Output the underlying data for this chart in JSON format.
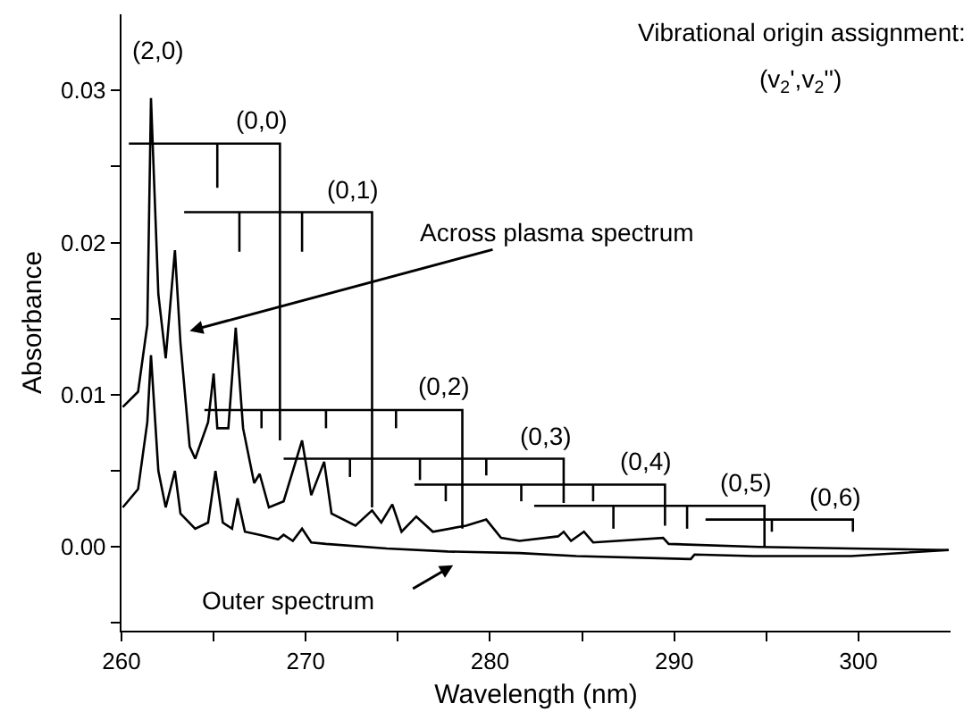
{
  "chart_data": {
    "type": "line",
    "xlabel": "Wavelength (nm)",
    "ylabel": "Absorbance",
    "xlim": [
      260,
      305
    ],
    "ylim": [
      -0.0055,
      0.035
    ],
    "xticks": [
      260,
      {
        "value": 265,
        "label": null
      },
      270,
      {
        "value": 275,
        "label": null
      },
      280,
      {
        "value": 285,
        "label": null
      },
      290,
      {
        "value": 295,
        "label": null
      },
      300
    ],
    "yticks": [
      {
        "value": -0.005,
        "label": null
      },
      {
        "value": 0,
        "label": "0.00"
      },
      {
        "value": 0.005,
        "label": null
      },
      {
        "value": 0.01,
        "label": "0.01"
      },
      {
        "value": 0.015,
        "label": null
      },
      {
        "value": 0.02,
        "label": "0.02"
      },
      {
        "value": 0.025,
        "label": null
      },
      {
        "value": 0.03,
        "label": "0.03"
      }
    ],
    "marker": "none",
    "line_style": "solid",
    "series": [
      {
        "color": "#000000",
        "x": [
          260.07,
          260.9,
          261.4,
          261.6,
          262.0,
          262.4,
          262.9,
          263.2,
          263.7,
          264.0,
          264.7,
          265.0,
          265.2,
          265.8,
          266.2,
          266.6,
          267.2,
          267.5,
          268.0,
          268.8,
          269.8,
          270.3,
          271.0,
          271.4,
          272.7,
          273.6,
          274.1,
          274.7,
          275.2,
          276.0,
          276.9,
          278.7,
          279.8,
          280.6,
          281.6,
          283.7,
          284.0,
          284.4,
          285.1,
          285.6,
          289.4,
          289.7,
          294.6,
          299.6,
          304.9
        ],
        "values": [
          0.0092,
          0.0102,
          0.0146,
          0.0295,
          0.0166,
          0.0124,
          0.0195,
          0.0134,
          0.0066,
          0.0058,
          0.0082,
          0.0114,
          0.0078,
          0.0078,
          0.0144,
          0.0078,
          0.0042,
          0.0048,
          0.0026,
          0.003,
          0.007,
          0.0034,
          0.0056,
          0.0022,
          0.0014,
          0.0024,
          0.0016,
          0.0028,
          0.001,
          0.002,
          0.001,
          0.0014,
          0.0018,
          0.0006,
          0.0004,
          0.0007,
          0.001,
          0.0004,
          0.001,
          0.0003,
          0.0006,
          0.0002,
          0.0,
          -0.0001,
          -0.0002
        ]
      },
      {
        "color": "#000000",
        "x": [
          260.07,
          260.9,
          261.4,
          261.6,
          262.0,
          262.4,
          262.9,
          263.2,
          264.0,
          264.7,
          265.1,
          265.5,
          266.0,
          266.3,
          266.7,
          267.5,
          268.5,
          268.8,
          269.3,
          269.8,
          270.3,
          271.1,
          274.4,
          277.7,
          281.6,
          284.7,
          290.9,
          291.1,
          294.3,
          299.6,
          304.9
        ],
        "values": [
          0.0026,
          0.0038,
          0.0082,
          0.0126,
          0.005,
          0.0026,
          0.005,
          0.0022,
          0.0012,
          0.0016,
          0.005,
          0.0016,
          0.0012,
          0.0032,
          0.001,
          0.0008,
          0.0005,
          0.0008,
          0.0004,
          0.0012,
          0.0003,
          0.0002,
          -0.0001,
          -0.0003,
          -0.0004,
          -0.0006,
          -0.0008,
          -0.0005,
          -0.0006,
          -0.0006,
          -0.0002
        ]
      },
      {
        "color": "#000000",
        "x": [
          268.6,
          268.6,
          260.4
        ],
        "values": [
          0.007,
          0.0265,
          0.0265
        ]
      },
      {
        "color": "#000000",
        "x": [
          273.6,
          273.6,
          263.4
        ],
        "values": [
          0.0026,
          0.022,
          0.022
        ]
      },
      {
        "color": "#000000",
        "x": [
          278.5,
          278.5,
          264.5
        ],
        "values": [
          0.0012,
          0.009,
          0.009
        ]
      },
      {
        "color": "#000000",
        "x": [
          284.0,
          284.0,
          268.8
        ],
        "values": [
          0.0029,
          0.0058,
          0.0058
        ]
      },
      {
        "color": "#000000",
        "x": [
          289.5,
          289.5,
          275.9
        ],
        "values": [
          0.0014,
          0.0041,
          0.0041
        ]
      },
      {
        "color": "#000000",
        "x": [
          294.9,
          294.9,
          282.4
        ],
        "values": [
          0.0,
          0.0027,
          0.0027
        ]
      },
      {
        "color": "#000000",
        "x": [
          299.7,
          299.7,
          291.7
        ],
        "values": [
          0.001,
          0.0018,
          0.0018
        ]
      },
      {
        "color": "#000000",
        "x": [
          265.2,
          265.2
        ],
        "values": [
          0.0265,
          0.0236
        ]
      },
      {
        "color": "#000000",
        "x": [
          266.4,
          266.4
        ],
        "values": [
          0.022,
          0.0194
        ]
      },
      {
        "color": "#000000",
        "x": [
          269.8,
          269.8
        ],
        "values": [
          0.022,
          0.0194
        ]
      },
      {
        "color": "#000000",
        "x": [
          267.6,
          267.6
        ],
        "values": [
          0.009,
          0.0078
        ]
      },
      {
        "color": "#000000",
        "x": [
          271.1,
          271.1
        ],
        "values": [
          0.009,
          0.0078
        ]
      },
      {
        "color": "#000000",
        "x": [
          274.9,
          274.9
        ],
        "values": [
          0.009,
          0.0078
        ]
      },
      {
        "color": "#000000",
        "x": [
          272.4,
          272.4
        ],
        "values": [
          0.0058,
          0.0046
        ]
      },
      {
        "color": "#000000",
        "x": [
          276.2,
          276.2
        ],
        "values": [
          0.0058,
          0.0044
        ]
      },
      {
        "color": "#000000",
        "x": [
          279.8,
          279.8
        ],
        "values": [
          0.0058,
          0.0047
        ]
      },
      {
        "color": "#000000",
        "x": [
          277.6,
          277.6
        ],
        "values": [
          0.0041,
          0.003
        ]
      },
      {
        "color": "#000000",
        "x": [
          281.7,
          281.7
        ],
        "values": [
          0.0041,
          0.003
        ]
      },
      {
        "color": "#000000",
        "x": [
          285.6,
          285.6
        ],
        "values": [
          0.0041,
          0.003
        ]
      },
      {
        "color": "#000000",
        "x": [
          286.7,
          286.7
        ],
        "values": [
          0.0027,
          0.0012
        ]
      },
      {
        "color": "#000000",
        "x": [
          290.7,
          290.7
        ],
        "values": [
          0.0027,
          0.0012
        ]
      },
      {
        "color": "#000000",
        "x": [
          295.3,
          295.3
        ],
        "values": [
          0.0018,
          0.001
        ]
      }
    ],
    "annotations": [
      "Vibrational origin assignment:",
      "(v$_{2}$',v$_{2}$'')",
      "(2,0)",
      "(0,0)",
      "(0,1)",
      "(0,2)",
      "(0,3)",
      "(0,4)",
      "(0,5)",
      "(0,6)",
      {
        "text": "Across plasma spectrum",
        "x": 263.7,
        "y": 0.0142
      },
      "Outer spectrum"
    ]
  }
}
